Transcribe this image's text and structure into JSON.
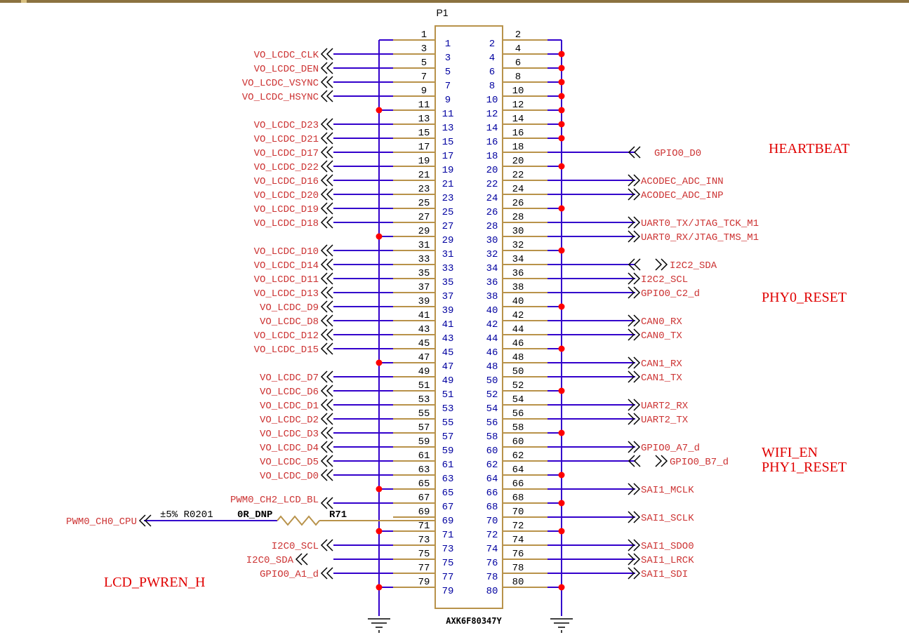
{
  "component": {
    "designator": "P1",
    "part_number": "AXK6F80347Y"
  },
  "colors": {
    "wire": "#3300cc",
    "pin": "#b8924a",
    "junction": "#ff0000",
    "net_label": "#cc3333",
    "annotation": "#e00000",
    "top_border": "#8b7240"
  },
  "left_signals": [
    {
      "pin": 3,
      "label": "VO_LCDC_CLK"
    },
    {
      "pin": 5,
      "label": "VO_LCDC_DEN"
    },
    {
      "pin": 7,
      "label": "VO_LCDC_VSYNC"
    },
    {
      "pin": 9,
      "label": "VO_LCDC_HSYNC"
    },
    {
      "pin": 13,
      "label": "VO_LCDC_D23"
    },
    {
      "pin": 15,
      "label": "VO_LCDC_D21"
    },
    {
      "pin": 17,
      "label": "VO_LCDC_D17"
    },
    {
      "pin": 19,
      "label": "VO_LCDC_D22"
    },
    {
      "pin": 21,
      "label": "VO_LCDC_D16"
    },
    {
      "pin": 23,
      "label": "VO_LCDC_D20"
    },
    {
      "pin": 25,
      "label": "VO_LCDC_D19"
    },
    {
      "pin": 27,
      "label": "VO_LCDC_D18"
    },
    {
      "pin": 31,
      "label": "VO_LCDC_D10"
    },
    {
      "pin": 33,
      "label": "VO_LCDC_D14"
    },
    {
      "pin": 35,
      "label": "VO_LCDC_D11"
    },
    {
      "pin": 37,
      "label": "VO_LCDC_D13"
    },
    {
      "pin": 39,
      "label": "VO_LCDC_D9"
    },
    {
      "pin": 41,
      "label": "VO_LCDC_D8"
    },
    {
      "pin": 43,
      "label": "VO_LCDC_D12"
    },
    {
      "pin": 45,
      "label": "VO_LCDC_D15"
    },
    {
      "pin": 49,
      "label": "VO_LCDC_D7"
    },
    {
      "pin": 51,
      "label": "VO_LCDC_D6"
    },
    {
      "pin": 53,
      "label": "VO_LCDC_D1"
    },
    {
      "pin": 55,
      "label": "VO_LCDC_D2"
    },
    {
      "pin": 57,
      "label": "VO_LCDC_D3"
    },
    {
      "pin": 59,
      "label": "VO_LCDC_D4"
    },
    {
      "pin": 61,
      "label": "VO_LCDC_D5"
    },
    {
      "pin": 63,
      "label": "VO_LCDC_D0"
    },
    {
      "pin": 67,
      "label": "PWM0_CH2_LCD_BL"
    },
    {
      "pin": 73,
      "label": "I2C0_SCL"
    },
    {
      "pin": 75,
      "label": "I2C0_SDA"
    },
    {
      "pin": 77,
      "label": "GPIO0_A1_d"
    }
  ],
  "left_gnd_pins": [
    1,
    11,
    29,
    47,
    65,
    71,
    79
  ],
  "right_signals": [
    {
      "pin": 18,
      "label": "GPIO0_D0"
    },
    {
      "pin": 22,
      "label": "ACODEC_ADC_INN"
    },
    {
      "pin": 24,
      "label": "ACODEC_ADC_INP"
    },
    {
      "pin": 28,
      "label": "UART0_TX/JTAG_TCK_M1"
    },
    {
      "pin": 30,
      "label": "UART0_RX/JTAG_TMS_M1"
    },
    {
      "pin": 34,
      "label": "I2C2_SDA"
    },
    {
      "pin": 36,
      "label": "I2C2_SCL"
    },
    {
      "pin": 38,
      "label": "GPIO0_C2_d"
    },
    {
      "pin": 42,
      "label": "CAN0_RX"
    },
    {
      "pin": 44,
      "label": "CAN0_TX"
    },
    {
      "pin": 48,
      "label": "CAN1_RX"
    },
    {
      "pin": 50,
      "label": "CAN1_TX"
    },
    {
      "pin": 54,
      "label": "UART2_RX"
    },
    {
      "pin": 56,
      "label": "UART2_TX"
    },
    {
      "pin": 60,
      "label": "GPIO0_A7_d"
    },
    {
      "pin": 62,
      "label": "GPIO0_B7_d"
    },
    {
      "pin": 66,
      "label": "SAI1_MCLK"
    },
    {
      "pin": 70,
      "label": "SAI1_SCLK"
    },
    {
      "pin": 74,
      "label": "SAI1_SDO0"
    },
    {
      "pin": 76,
      "label": "SAI1_LRCK"
    },
    {
      "pin": 78,
      "label": "SAI1_SDI"
    }
  ],
  "right_gnd_pins": [
    2,
    4,
    6,
    8,
    10,
    12,
    14,
    16,
    20,
    26,
    32,
    40,
    46,
    52,
    58,
    64,
    68,
    72,
    80
  ],
  "resistor": {
    "designator": "R71",
    "value": "0R_DNP",
    "tolerance_package": "±5% R0201",
    "net": "PWM0_CH0_CPU",
    "pin": 69
  },
  "annotations": {
    "heartbeat": "HEARTBEAT",
    "phy0_reset": "PHY0_RESET",
    "wifi_en": "WIFI_EN",
    "phy1_reset": "PHY1_RESET",
    "lcd_pwren": "LCD_PWREN_H"
  }
}
